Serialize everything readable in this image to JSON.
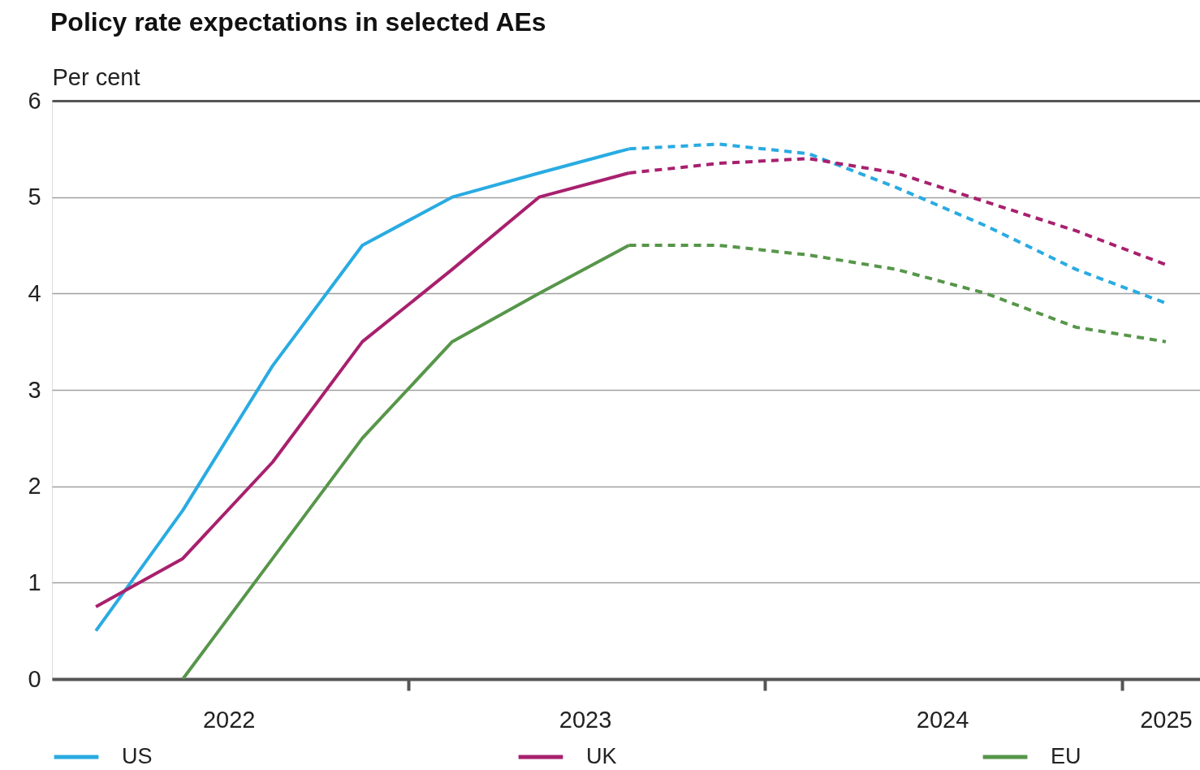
{
  "chart_data": {
    "type": "line",
    "title": "Policy rate expectations in selected AEs",
    "ylabel": "Per cent",
    "x": [
      "2022-02-15",
      "2022-05-15",
      "2022-08-15",
      "2022-11-15",
      "2023-02-15",
      "2023-05-15",
      "2023-08-15",
      "2023-11-15",
      "2024-02-15",
      "2024-05-15",
      "2024-08-15",
      "2024-11-15",
      "2025-02-15"
    ],
    "series": [
      {
        "name": "US",
        "color": "#29abe2",
        "line_style": "solid",
        "values": [
          0.5,
          1.75,
          3.25,
          4.5,
          5.0,
          5.25,
          5.5,
          null,
          null,
          null,
          null,
          null,
          null
        ]
      },
      {
        "name": "UK",
        "color": "#a8206e",
        "line_style": "solid",
        "values": [
          0.75,
          1.25,
          2.25,
          3.5,
          4.25,
          5.0,
          5.25,
          null,
          null,
          null,
          null,
          null,
          null
        ]
      },
      {
        "name": "EU",
        "color": "#57964a",
        "line_style": "solid",
        "values": [
          null,
          0,
          1.25,
          2.5,
          3.5,
          4.0,
          4.5,
          null,
          null,
          null,
          null,
          null,
          null
        ]
      },
      {
        "color": "#29abe2",
        "line_style": "dashed",
        "values": [
          null,
          null,
          null,
          null,
          null,
          null,
          5.5,
          5.55,
          5.45,
          5.1,
          4.7,
          4.25,
          3.9
        ]
      },
      {
        "color": "#a8206e",
        "line_style": "dashed",
        "values": [
          null,
          null,
          null,
          null,
          null,
          null,
          5.25,
          5.35,
          5.4,
          5.25,
          4.95,
          4.65,
          4.3
        ]
      },
      {
        "color": "#57964a",
        "line_style": "dashed",
        "values": [
          null,
          null,
          null,
          null,
          null,
          null,
          4.5,
          4.5,
          4.4,
          4.25,
          4.0,
          3.65,
          3.5
        ]
      }
    ],
    "xlim": [
      "2022-01-01",
      "2025-03-22"
    ],
    "xticks": [
      {
        "value": "2022-07-01",
        "label": "2022"
      },
      {
        "value": "2023-01-01",
        "label": null
      },
      {
        "value": "2023-07-01",
        "label": "2023"
      },
      {
        "value": "2024-01-01",
        "label": null
      },
      {
        "value": "2024-07-01",
        "label": "2024"
      },
      {
        "value": "2025-01-01",
        "label": null
      },
      {
        "value": "2025-02-15",
        "label": "2025"
      }
    ],
    "ylim": [
      0,
      6
    ],
    "yticks": [
      0,
      1,
      2,
      3,
      4,
      5,
      6
    ],
    "grid": "y",
    "legend": "bottom"
  }
}
